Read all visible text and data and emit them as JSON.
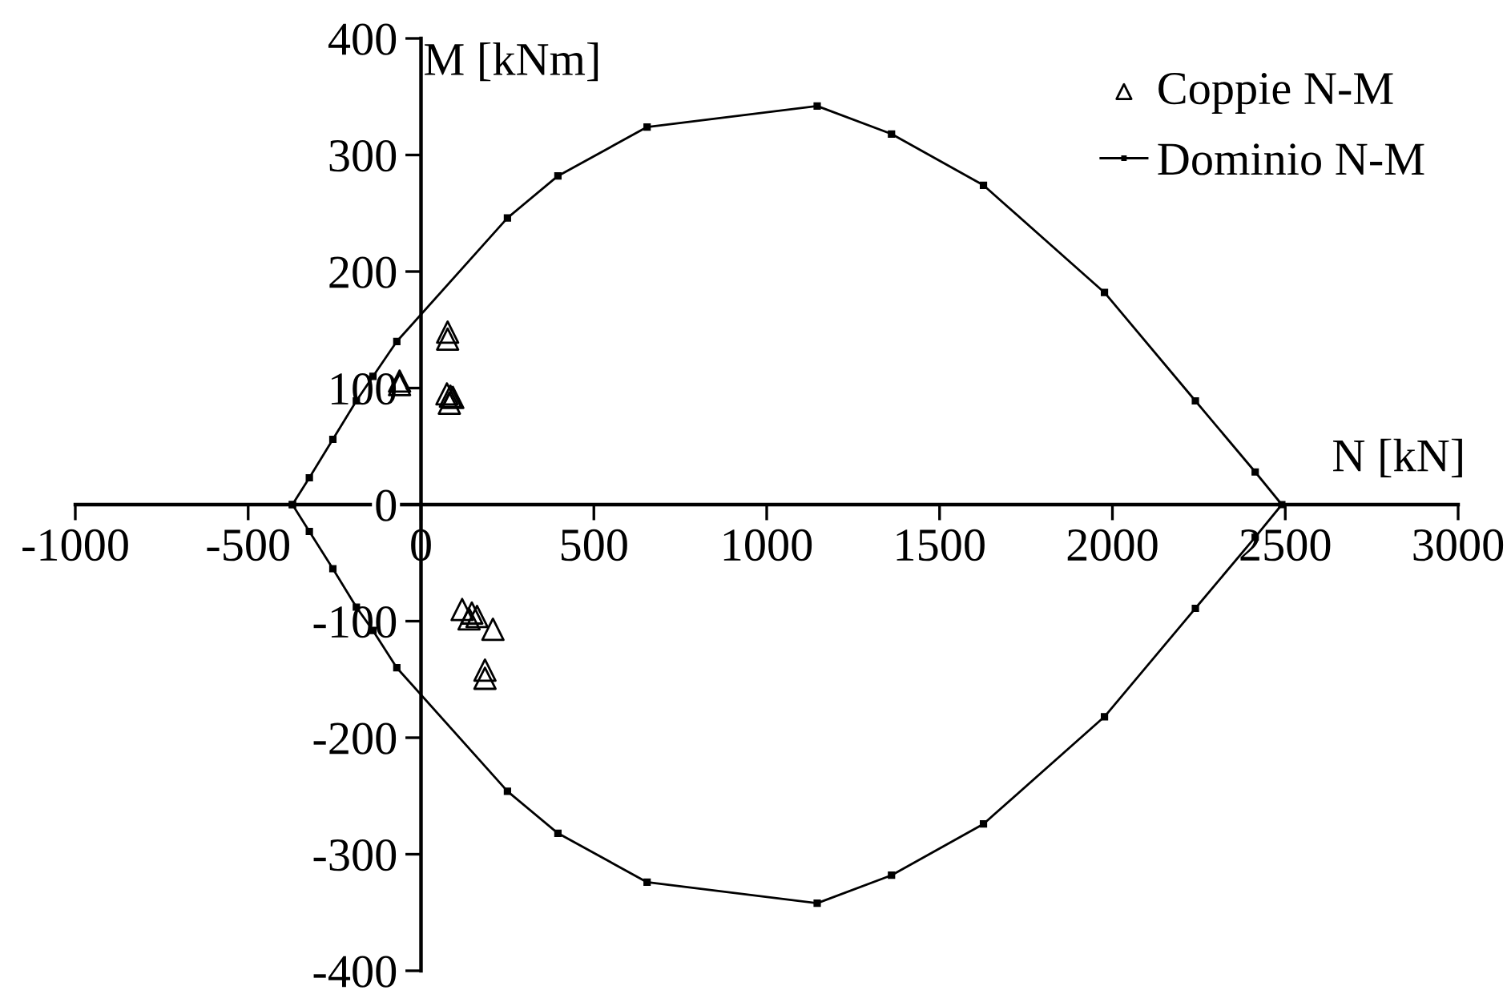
{
  "chart_data": {
    "type": "scatter",
    "xlabel": "N [kN]",
    "ylabel": "M [kNm]",
    "xlim": [
      -1000,
      3000
    ],
    "xticks": [
      -1000,
      -500,
      0,
      500,
      1000,
      1500,
      2000,
      2500,
      3000
    ],
    "ylim": [
      -400,
      400
    ],
    "yticks": [
      -400,
      -300,
      -200,
      -100,
      0,
      100,
      200,
      300,
      400
    ],
    "legend": "top right",
    "series": [
      {
        "name": "Coppie N-M",
        "marker": "triangle",
        "color": "#000000",
        "x": [
          -62,
          -62,
          77,
          77,
          75,
          85,
          92,
          82,
          119,
          147,
          162,
          139,
          208,
          185,
          185
        ],
        "values": [
          106,
          103,
          148,
          142,
          95,
          93,
          92,
          87,
          -90,
          -93,
          -96,
          -98,
          -107,
          -142,
          -149
        ]
      },
      {
        "name": "Dominio N-M",
        "marker": "square",
        "line_style": "solid",
        "color": "#000000",
        "x": [
          -372,
          -323,
          -255,
          -187,
          -139,
          -70,
          250,
          396,
          654,
          1146,
          1361,
          1627,
          1977,
          2240,
          2413,
          2490,
          2413,
          2240,
          1977,
          1627,
          1361,
          1146,
          654,
          396,
          250,
          -70,
          -139,
          -187,
          -255,
          -323,
          -372
        ],
        "values": [
          0,
          23,
          56,
          89,
          110,
          140,
          246,
          282,
          324,
          342,
          318,
          274,
          182,
          89,
          28,
          0,
          -28,
          -89,
          -182,
          -274,
          -318,
          -342,
          -324,
          -282,
          -246,
          -140,
          -108,
          -88,
          -55,
          -23,
          0
        ]
      }
    ]
  }
}
